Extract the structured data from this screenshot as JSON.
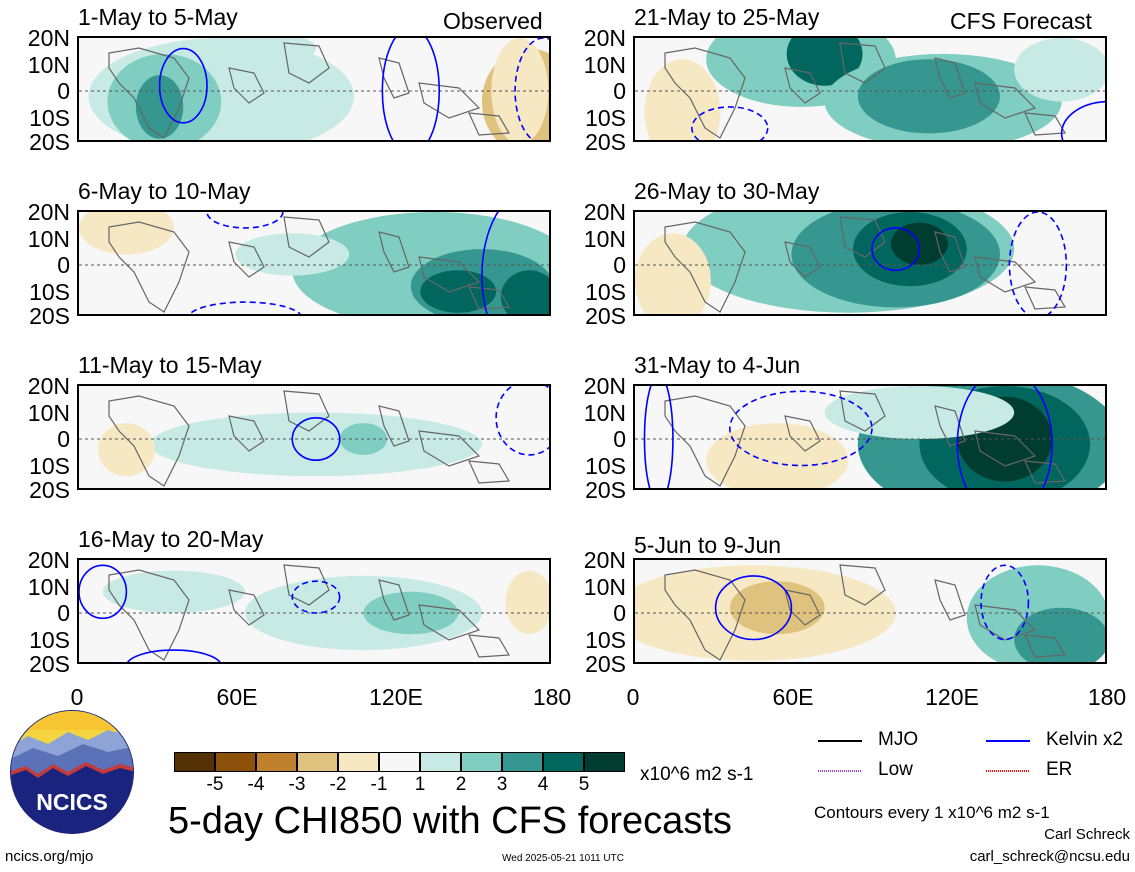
{
  "header": {
    "observed_label": "Observed",
    "forecast_label": "CFS Forecast"
  },
  "panels": [
    {
      "title": "1-May to 5-May"
    },
    {
      "title": "21-May to 25-May"
    },
    {
      "title": "6-May to 10-May"
    },
    {
      "title": "26-May to 30-May"
    },
    {
      "title": "11-May to 15-May"
    },
    {
      "title": "31-May to 4-Jun"
    },
    {
      "title": "16-May to 20-May"
    },
    {
      "title": "5-Jun to 9-Jun"
    }
  ],
  "lat_ticks": [
    "20N",
    "10N",
    "0",
    "10S",
    "20S"
  ],
  "lon_ticks": [
    "0",
    "60E",
    "120E",
    "180"
  ],
  "colorbar": {
    "colors": [
      "#543005",
      "#8c510a",
      "#bf812d",
      "#dfc27d",
      "#f6e8c3",
      "#f7f7f7",
      "#c7eae5",
      "#80cdc1",
      "#35978f",
      "#01665e",
      "#003c30"
    ],
    "labels": [
      "-5",
      "-4",
      "-3",
      "-2",
      "-1",
      "1",
      "2",
      "3",
      "4",
      "5"
    ],
    "units": "x10^6 m2 s-1"
  },
  "main_title": "5-day CHI850 with CFS forecasts",
  "legend": {
    "items": [
      {
        "label": "MJO",
        "color": "#000000"
      },
      {
        "label": "Kelvin x2",
        "color": "#0000ff"
      },
      {
        "label": "Low",
        "color": "#a040e0"
      },
      {
        "label": "ER",
        "color": "#ff0000"
      }
    ],
    "contour_note": "Contours every 1 x10^6 m2 s-1"
  },
  "credits": {
    "author": "Carl Schreck",
    "email": "carl_schreck@ncsu.edu",
    "url": "ncics.org/mjo",
    "timestamp": "Wed 2025-05-21 1011 UTC"
  },
  "logo": {
    "text": "NCICS"
  }
}
